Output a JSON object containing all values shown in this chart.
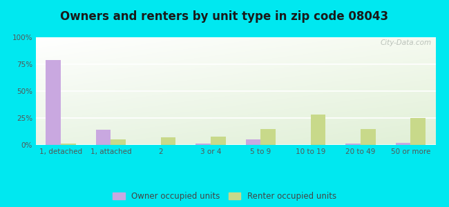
{
  "title": "Owners and renters by unit type in zip code 08043",
  "categories": [
    "1, detached",
    "1, attached",
    "2",
    "3 or 4",
    "5 to 9",
    "10 to 19",
    "20 to 49",
    "50 or more"
  ],
  "owner_values": [
    79,
    14,
    0,
    1,
    5,
    0,
    1,
    2
  ],
  "renter_values": [
    1,
    5,
    7,
    8,
    15,
    28,
    15,
    25
  ],
  "owner_color": "#c9a8e0",
  "renter_color": "#c8d98a",
  "bg_color": "#00e8f0",
  "title_fontsize": 12,
  "tick_fontsize": 7.5,
  "legend_fontsize": 8.5,
  "ylim": [
    0,
    100
  ],
  "yticks": [
    0,
    25,
    50,
    75,
    100
  ],
  "ytick_labels": [
    "0%",
    "25%",
    "50%",
    "75%",
    "100%"
  ],
  "legend_owner": "Owner occupied units",
  "legend_renter": "Renter occupied units",
  "watermark": "City-Data.com",
  "bar_width": 0.3
}
